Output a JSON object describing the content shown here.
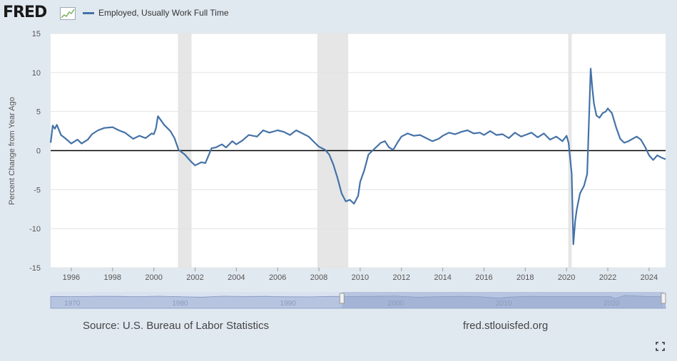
{
  "header": {
    "logo_text": "FRED",
    "logo_icon": "chart-line-icon"
  },
  "colors": {
    "series": "#4572a7",
    "plot_bg": "#ffffff",
    "page_bg": "#e1e9f0",
    "recession": "#e6e6e6",
    "navigator_fill": "#b6c4e0",
    "navigator_selected": "#8da2cd",
    "zero_line": "#000000"
  },
  "footer": {
    "source": "Source: U.S. Bureau of Labor Statistics",
    "url": "fred.stlouisfed.org",
    "fullscreen_icon": "fullscreen-icon"
  },
  "navigator": {
    "labels": [
      "1970",
      "1980",
      "1990",
      "2000",
      "2010",
      "2020"
    ],
    "label_years": [
      1970,
      1980,
      1990,
      2000,
      2010,
      2020
    ],
    "range_start": 1968,
    "range_end": 2025,
    "selected_start": 1995,
    "selected_end": 2024.8
  },
  "chart_data": {
    "type": "line",
    "title": "",
    "xlabel": "",
    "ylabel": "Percent Change from Year Ago",
    "ylim": [
      -15,
      15
    ],
    "xlim": [
      1995,
      2024.8
    ],
    "yticks": [
      15,
      10,
      5,
      0,
      -5,
      -10,
      -15
    ],
    "xticks": [
      "1996",
      "1998",
      "2000",
      "2002",
      "2004",
      "2006",
      "2008",
      "2010",
      "2012",
      "2014",
      "2016",
      "2018",
      "2020",
      "2022",
      "2024"
    ],
    "xtick_years": [
      1996,
      1998,
      2000,
      2002,
      2004,
      2006,
      2008,
      2010,
      2012,
      2014,
      2016,
      2018,
      2020,
      2022,
      2024
    ],
    "grid": true,
    "legend": "top-left",
    "recessions": [
      [
        2001.17,
        2001.83
      ],
      [
        2007.92,
        2009.42
      ],
      [
        2020.08,
        2020.25
      ]
    ],
    "series": [
      {
        "name": "Employed, Usually Work Full Time",
        "x": [
          1995.0,
          1995.1,
          1995.2,
          1995.3,
          1995.5,
          1995.7,
          1996.0,
          1996.3,
          1996.5,
          1996.8,
          1997.0,
          1997.3,
          1997.6,
          1998.0,
          1998.3,
          1998.6,
          1999.0,
          1999.3,
          1999.6,
          1999.9,
          2000.0,
          2000.1,
          2000.2,
          2000.5,
          2000.8,
          2001.0,
          2001.2,
          2001.5,
          2001.8,
          2002.0,
          2002.3,
          2002.5,
          2002.8,
          2003.0,
          2003.3,
          2003.5,
          2003.8,
          2004.0,
          2004.3,
          2004.6,
          2005.0,
          2005.3,
          2005.6,
          2006.0,
          2006.3,
          2006.6,
          2006.9,
          2007.2,
          2007.5,
          2007.8,
          2008.0,
          2008.3,
          2008.5,
          2008.7,
          2008.9,
          2009.1,
          2009.3,
          2009.5,
          2009.7,
          2009.9,
          2010.0,
          2010.2,
          2010.4,
          2010.6,
          2010.8,
          2011.0,
          2011.2,
          2011.4,
          2011.6,
          2011.8,
          2012.0,
          2012.3,
          2012.6,
          2012.9,
          2013.2,
          2013.5,
          2013.8,
          2014.0,
          2014.3,
          2014.6,
          2014.9,
          2015.2,
          2015.5,
          2015.8,
          2016.0,
          2016.3,
          2016.6,
          2016.9,
          2017.2,
          2017.5,
          2017.8,
          2018.0,
          2018.3,
          2018.6,
          2018.9,
          2019.2,
          2019.5,
          2019.8,
          2020.0,
          2020.1,
          2020.25,
          2020.33,
          2020.42,
          2020.5,
          2020.65,
          2020.85,
          2021.0,
          2021.1,
          2021.17,
          2021.25,
          2021.33,
          2021.45,
          2021.6,
          2021.75,
          2021.9,
          2022.0,
          2022.2,
          2022.4,
          2022.6,
          2022.8,
          2023.0,
          2023.2,
          2023.4,
          2023.6,
          2023.8,
          2024.0,
          2024.2,
          2024.4,
          2024.6,
          2024.8
        ],
        "values": [
          1.0,
          3.2,
          2.8,
          3.3,
          2.0,
          1.6,
          0.9,
          1.4,
          0.9,
          1.4,
          2.1,
          2.6,
          2.9,
          3.0,
          2.6,
          2.3,
          1.5,
          1.9,
          1.6,
          2.2,
          2.1,
          2.8,
          4.4,
          3.3,
          2.5,
          1.6,
          0.1,
          -0.5,
          -1.4,
          -1.9,
          -1.5,
          -1.6,
          0.3,
          0.4,
          0.8,
          0.4,
          1.2,
          0.8,
          1.3,
          2.0,
          1.8,
          2.6,
          2.3,
          2.6,
          2.4,
          2.0,
          2.6,
          2.2,
          1.8,
          1.0,
          0.5,
          0.1,
          -0.5,
          -1.8,
          -3.5,
          -5.5,
          -6.5,
          -6.3,
          -6.8,
          -5.8,
          -4.0,
          -2.5,
          -0.5,
          0.0,
          0.5,
          1.0,
          1.2,
          0.4,
          0.1,
          1.0,
          1.8,
          2.2,
          1.9,
          2.0,
          1.6,
          1.2,
          1.5,
          1.9,
          2.3,
          2.1,
          2.4,
          2.6,
          2.2,
          2.3,
          2.0,
          2.5,
          2.0,
          2.1,
          1.6,
          2.3,
          1.8,
          2.0,
          2.3,
          1.7,
          2.2,
          1.4,
          1.8,
          1.2,
          1.9,
          1.0,
          -3.0,
          -12.0,
          -9.0,
          -7.5,
          -5.5,
          -4.5,
          -3.0,
          5.0,
          10.5,
          8.0,
          6.0,
          4.5,
          4.2,
          4.8,
          5.0,
          5.4,
          4.8,
          3.0,
          1.5,
          1.0,
          1.2,
          1.5,
          1.8,
          1.4,
          0.5,
          -0.6,
          -1.2,
          -0.6,
          -0.9,
          -1.1
        ]
      }
    ]
  }
}
